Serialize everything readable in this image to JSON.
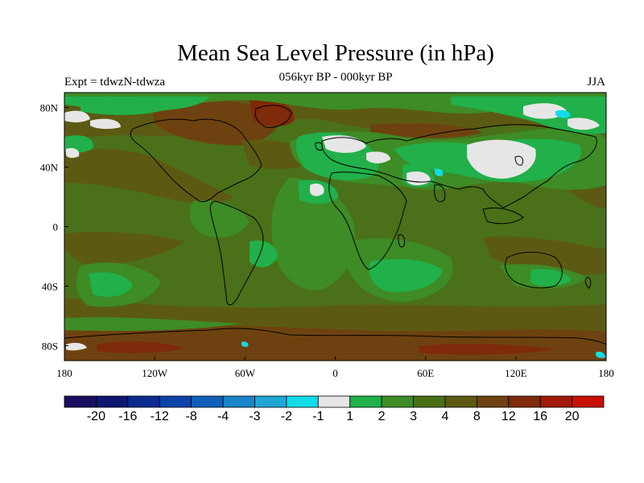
{
  "title": "Mean Sea Level Pressure (in hPa)",
  "subtitle_left": "Expt = tdwzN-tdwza",
  "subtitle_center": "056kyr BP - 000kyr BP",
  "subtitle_right": "JJA",
  "x_ticks": [
    {
      "lon": -180,
      "label": "180"
    },
    {
      "lon": -120,
      "label": "120W"
    },
    {
      "lon": -60,
      "label": "60W"
    },
    {
      "lon": 0,
      "label": "0"
    },
    {
      "lon": 60,
      "label": "60E"
    },
    {
      "lon": 120,
      "label": "120E"
    },
    {
      "lon": 180,
      "label": "180"
    }
  ],
  "y_ticks": [
    {
      "lat": 80,
      "label": "80N"
    },
    {
      "lat": 40,
      "label": "40N"
    },
    {
      "lat": 0,
      "label": "0"
    },
    {
      "lat": -40,
      "label": "40S"
    },
    {
      "lat": -80,
      "label": "80S"
    }
  ],
  "colorbar": {
    "colors": [
      "#1a0f5e",
      "#0d1670",
      "#0a2b8f",
      "#0c43a6",
      "#1060b8",
      "#1a84c8",
      "#21a6d6",
      "#12dce6",
      "#e6e6e6",
      "#21b04a",
      "#3d8c26",
      "#4a7019",
      "#5c5a12",
      "#6e4210",
      "#7f2a0a",
      "#a01a08",
      "#c81006"
    ],
    "labels": [
      "-20",
      "-16",
      "-12",
      "-8",
      "-4",
      "-3",
      "-2",
      "-1",
      "1",
      "2",
      "3",
      "4",
      "8",
      "12",
      "16",
      "20"
    ]
  },
  "map_colors": {
    "background": "#4a7019",
    "level_3": "#3d8c26",
    "level_2": "#21b04a",
    "level_1": "#e6e6e6",
    "level_m1": "#12dce6",
    "level_8": "#5c5a12",
    "level_12": "#6e4210",
    "level_16": "#7f2a0a"
  }
}
